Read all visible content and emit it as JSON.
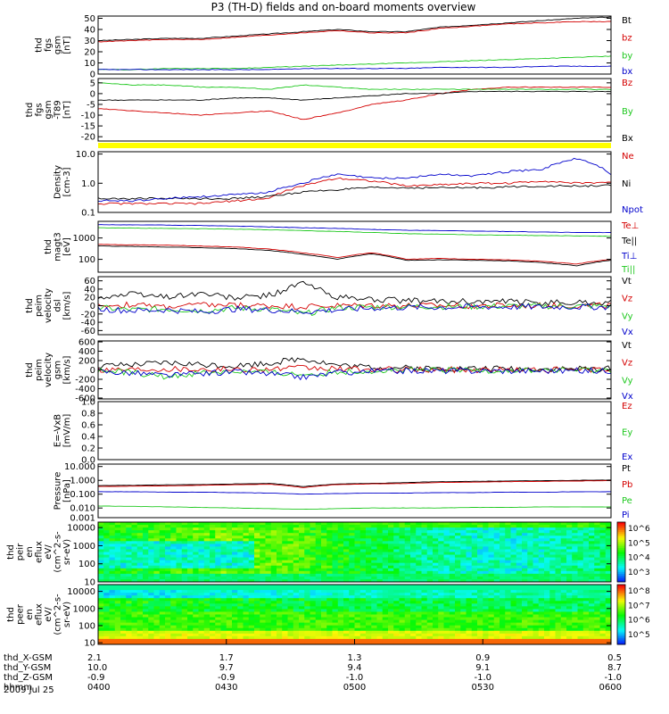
{
  "title": "P3 (TH-D) fields and on-board moments overview",
  "date": "2009 Jul 25",
  "colors": {
    "black": "#000000",
    "red": "#d40000",
    "green": "#1ec81e",
    "blue": "#0000cc",
    "yellow": "#ffff00"
  },
  "chart_data": [
    {
      "type": "line",
      "id": "p1",
      "ylabel": [
        "thd",
        "fgs",
        "gsm",
        "[nT]"
      ],
      "ylim": [
        0,
        52
      ],
      "ticks": [
        "0",
        "10",
        "20",
        "30",
        "40",
        "50"
      ],
      "series": [
        {
          "name": "Bt",
          "color": "#000000",
          "values": [
            30,
            31,
            32,
            32,
            34,
            36,
            38,
            40,
            38,
            38,
            42,
            44,
            46,
            48,
            50,
            51
          ]
        },
        {
          "name": "bz",
          "color": "#d40000",
          "values": [
            29,
            30,
            31,
            31,
            33,
            35,
            37,
            39,
            37,
            37,
            41,
            43,
            45,
            46,
            47,
            47
          ]
        },
        {
          "name": "by",
          "color": "#1ec81e",
          "values": [
            4,
            4,
            5,
            5,
            5,
            6,
            7,
            8,
            9,
            10,
            11,
            12,
            13,
            14,
            15,
            16
          ]
        },
        {
          "name": "bx",
          "color": "#0000cc",
          "values": [
            4,
            4,
            4,
            4,
            4,
            4,
            5,
            5,
            5,
            5,
            6,
            6,
            6,
            7,
            7,
            7
          ]
        }
      ]
    },
    {
      "type": "line",
      "id": "p2",
      "ylabel": [
        "thd",
        "fgs",
        "gsm",
        "-T89",
        "[nT]"
      ],
      "ylim": [
        -22,
        7
      ],
      "ticks": [
        "-20",
        "-15",
        "-10",
        "-5",
        "0",
        "5"
      ],
      "series": [
        {
          "name": "Bz",
          "color": "#d40000",
          "values": [
            -7,
            -8,
            -9,
            -10,
            -9,
            -8,
            -12,
            -9,
            -5,
            -3,
            0,
            2,
            3,
            3,
            3,
            3
          ]
        },
        {
          "name": "By",
          "color": "#1ec81e",
          "values": [
            5,
            4,
            4,
            3,
            3,
            2,
            4,
            3,
            2,
            2,
            2,
            2,
            2,
            2,
            2,
            2
          ]
        },
        {
          "name": "Bx",
          "color": "#000000",
          "values": [
            -3,
            -3,
            -3,
            -3,
            -2,
            -2,
            -3,
            -2,
            -1,
            0,
            0,
            1,
            1,
            1,
            1,
            1
          ]
        }
      ]
    },
    {
      "type": "line",
      "id": "p3",
      "scale": "log",
      "ylabel": [
        "Density",
        "[cm-3]"
      ],
      "ylim": [
        0.1,
        12
      ],
      "ticks": [
        "10.0",
        "1.0",
        "0.1"
      ],
      "series": [
        {
          "name": "Ne",
          "color": "#d40000",
          "values": [
            0.2,
            0.2,
            0.2,
            0.2,
            0.25,
            0.3,
            0.8,
            1.5,
            1.2,
            0.8,
            0.9,
            1.0,
            1.0,
            1.2,
            1.0,
            1.1
          ]
        },
        {
          "name": "Ni",
          "color": "#000000",
          "values": [
            0.3,
            0.3,
            0.3,
            0.3,
            0.3,
            0.35,
            0.5,
            0.6,
            0.7,
            0.7,
            0.7,
            0.7,
            0.75,
            0.8,
            0.8,
            0.85
          ]
        },
        {
          "name": "Npot",
          "color": "#0000cc",
          "values": [
            0.25,
            0.25,
            0.3,
            0.35,
            0.4,
            0.5,
            1.0,
            2.0,
            1.5,
            1.5,
            2.0,
            1.8,
            2.5,
            3.0,
            7.0,
            2.0
          ]
        }
      ]
    },
    {
      "type": "line",
      "id": "p4",
      "scale": "log",
      "ylabel": [
        "thd",
        "magt3",
        "[eV]"
      ],
      "ylim": [
        25,
        6000
      ],
      "ticks": [
        "1000",
        "100"
      ],
      "series": [
        {
          "name": "Te⊥",
          "color": "#d40000",
          "values": [
            500,
            480,
            460,
            420,
            380,
            300,
            200,
            120,
            200,
            100,
            110,
            100,
            95,
            80,
            60,
            100
          ]
        },
        {
          "name": "Te||",
          "color": "#000000",
          "values": [
            420,
            400,
            380,
            350,
            320,
            260,
            170,
            100,
            180,
            90,
            95,
            90,
            85,
            70,
            50,
            90
          ]
        },
        {
          "name": "Ti⊥",
          "color": "#0000cc",
          "values": [
            4200,
            4100,
            4000,
            3800,
            3600,
            3300,
            3000,
            2800,
            2500,
            2300,
            2200,
            2100,
            2000,
            1900,
            1800,
            1800
          ]
        },
        {
          "name": "Ti||",
          "color": "#1ec81e",
          "values": [
            3000,
            2900,
            2800,
            2700,
            2600,
            2400,
            2200,
            2000,
            1800,
            1600,
            1500,
            1400,
            1350,
            1300,
            1250,
            1200
          ]
        }
      ]
    },
    {
      "type": "line",
      "id": "p5",
      "ylabel": [
        "thd",
        "peim",
        "velocity",
        "dsl",
        "[km/s]"
      ],
      "ylim": [
        -70,
        70
      ],
      "ticks": [
        "-60",
        "-40",
        "-20",
        "0",
        "20",
        "40",
        "60"
      ],
      "series": [
        {
          "name": "Vt",
          "color": "#000000",
          "values": [
            20,
            28,
            22,
            30,
            18,
            25,
            55,
            20,
            15,
            12,
            10,
            10,
            9,
            8,
            8,
            8
          ]
        },
        {
          "name": "Vz",
          "color": "#d40000",
          "values": [
            0,
            2,
            -3,
            2,
            1,
            0,
            -2,
            0,
            1,
            0,
            0,
            0,
            0,
            0,
            0,
            0
          ]
        },
        {
          "name": "Vy",
          "color": "#1ec81e",
          "values": [
            -5,
            -10,
            -8,
            -12,
            -6,
            -8,
            -20,
            -5,
            -3,
            -2,
            -2,
            -2,
            -1,
            -1,
            -1,
            -1
          ]
        },
        {
          "name": "Vx",
          "color": "#0000cc",
          "values": [
            -8,
            -12,
            -10,
            -15,
            -8,
            -10,
            -15,
            -10,
            -6,
            -4,
            -4,
            -3,
            -3,
            -3,
            -3,
            -3
          ]
        }
      ]
    },
    {
      "type": "line",
      "id": "p6",
      "ylabel": [
        "thd",
        "peim",
        "velocity",
        "gsm",
        "[km/s]"
      ],
      "ylim": [
        -620,
        620
      ],
      "ticks": [
        "-600",
        "-400",
        "-200",
        "0",
        "200",
        "400",
        "600"
      ],
      "series": [
        {
          "name": "Vt",
          "color": "#000000",
          "values": [
            80,
            100,
            150,
            120,
            90,
            150,
            250,
            100,
            60,
            40,
            30,
            30,
            25,
            25,
            25,
            25
          ]
        },
        {
          "name": "Vz",
          "color": "#d40000",
          "values": [
            10,
            20,
            30,
            20,
            10,
            20,
            40,
            20,
            10,
            5,
            5,
            5,
            5,
            5,
            5,
            5
          ]
        },
        {
          "name": "Vy",
          "color": "#1ec81e",
          "values": [
            -20,
            -50,
            -150,
            -60,
            -30,
            -60,
            -100,
            -40,
            -20,
            -10,
            -10,
            -10,
            -10,
            -10,
            -10,
            -10
          ]
        },
        {
          "name": "Vx",
          "color": "#0000cc",
          "values": [
            -30,
            -60,
            -120,
            -80,
            -40,
            -80,
            -150,
            -60,
            -30,
            -15,
            -15,
            -15,
            -15,
            -15,
            -15,
            -15
          ]
        }
      ]
    },
    {
      "type": "line",
      "id": "p7",
      "ylabel": [
        "E=-VxB",
        "[mV/m]"
      ],
      "ylim": [
        0,
        1
      ],
      "ticks": [
        "0.0",
        "0.2",
        "0.4",
        "0.6",
        "0.8",
        "1.0"
      ],
      "series": [
        {
          "name": "Ez",
          "color": "#d40000",
          "values": []
        },
        {
          "name": "Ey",
          "color": "#1ec81e",
          "values": []
        },
        {
          "name": "Ex",
          "color": "#0000cc",
          "values": []
        }
      ]
    },
    {
      "type": "line",
      "id": "p8",
      "scale": "log",
      "ylabel": [
        "Pressure",
        "[nPa]"
      ],
      "ylim": [
        0.002,
        15
      ],
      "ticks": [
        "10.000",
        "1.000",
        "0.100",
        "0.010",
        "0.001"
      ],
      "series": [
        {
          "name": "Pt",
          "color": "#000000",
          "values": [
            0.42,
            0.44,
            0.48,
            0.5,
            0.55,
            0.6,
            0.35,
            0.55,
            0.6,
            0.7,
            0.8,
            0.85,
            0.9,
            0.95,
            1.0,
            1.05
          ]
        },
        {
          "name": "Pb",
          "color": "#d40000",
          "values": [
            0.36,
            0.38,
            0.4,
            0.44,
            0.48,
            0.52,
            0.3,
            0.5,
            0.55,
            0.6,
            0.7,
            0.75,
            0.8,
            0.85,
            0.9,
            0.95
          ]
        },
        {
          "name": "Pe",
          "color": "#1ec81e",
          "values": [
            0.014,
            0.013,
            0.012,
            0.011,
            0.01,
            0.009,
            0.008,
            0.009,
            0.01,
            0.01,
            0.01,
            0.011,
            0.011,
            0.012,
            0.012,
            0.012
          ]
        },
        {
          "name": "Pi",
          "color": "#0000cc",
          "values": [
            0.15,
            0.15,
            0.14,
            0.14,
            0.13,
            0.12,
            0.1,
            0.11,
            0.12,
            0.12,
            0.13,
            0.13,
            0.14,
            0.14,
            0.15,
            0.15
          ]
        }
      ]
    },
    {
      "type": "heatmap",
      "id": "p9",
      "ylabel": [
        "thd",
        "peir",
        "en",
        "eflux",
        "eV/",
        "(cm^2-s-",
        "sr-eV)"
      ],
      "scale": "log",
      "ylim": [
        10,
        20000
      ],
      "ticks": [
        "10000",
        "1000",
        "100",
        "10"
      ],
      "colorbar": {
        "ticks": [
          "10^6",
          "10^5",
          "10^4",
          "10^3"
        ],
        "range": [
          1000,
          1000000
        ]
      }
    },
    {
      "type": "heatmap",
      "id": "p10",
      "ylabel": [
        "thd",
        "peer",
        "en",
        "eflux",
        "eV/",
        "(cm^2-s-",
        "sr-eV)"
      ],
      "scale": "log",
      "ylim": [
        8,
        25000
      ],
      "ticks": [
        "10000",
        "1000",
        "100",
        "10"
      ],
      "colorbar": {
        "ticks": [
          "10^8",
          "10^7",
          "10^6",
          "10^5"
        ],
        "range": [
          30000,
          200000000
        ]
      }
    }
  ],
  "xaxis": {
    "times": [
      "0400",
      "0430",
      "0500",
      "0530",
      "0600"
    ],
    "rows": [
      {
        "label": "thd_X-GSM",
        "values": [
          "2.1",
          "1.7",
          "1.3",
          "0.9",
          "0.5"
        ]
      },
      {
        "label": "thd_Y-GSM",
        "values": [
          "10.0",
          "9.7",
          "9.4",
          "9.1",
          "8.7"
        ]
      },
      {
        "label": "thd_Z-GSM",
        "values": [
          "-0.9",
          "-0.9",
          "-1.0",
          "-1.0",
          "-1.0"
        ]
      },
      {
        "label": "hhmm",
        "values": [
          "0400",
          "0430",
          "0500",
          "0530",
          "0600"
        ]
      }
    ]
  }
}
